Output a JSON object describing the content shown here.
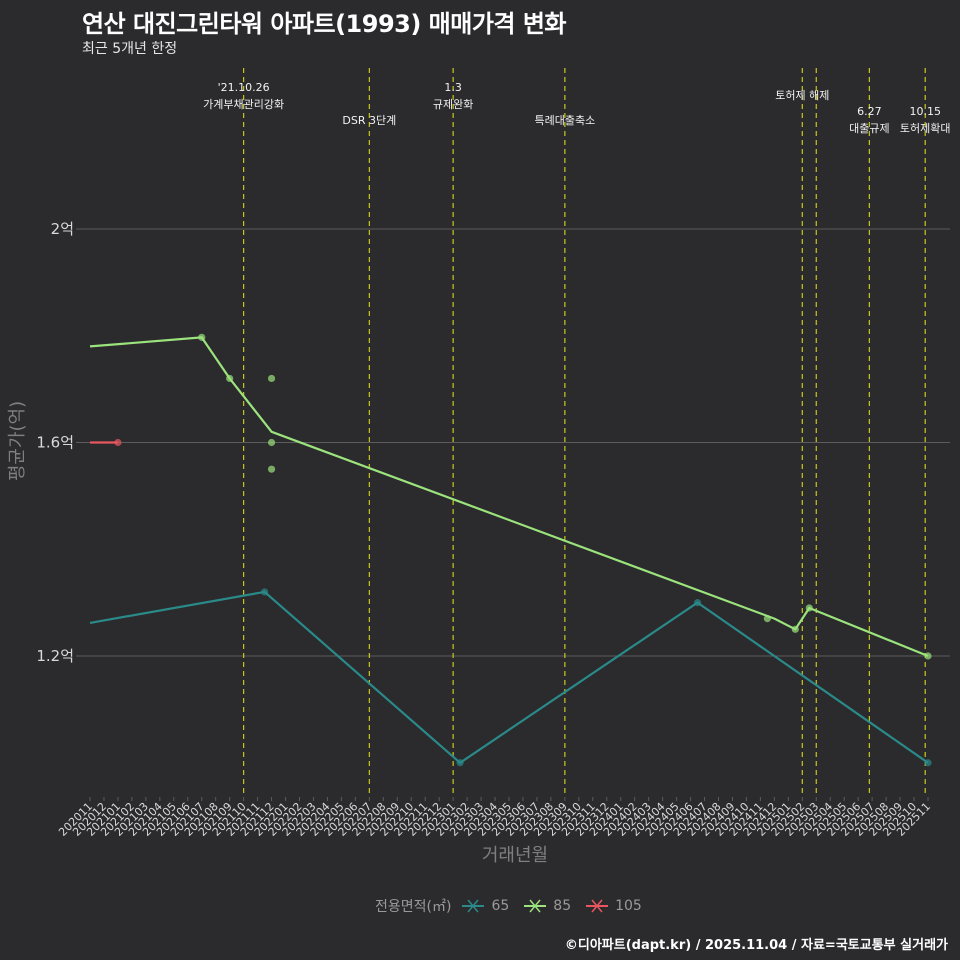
{
  "title": "연산 대진그린타워 아파트(1993) 매매가격 변화",
  "subtitle": "최근 5개년 한정",
  "caption": "©디아파트(dapt.kr) / 2025.11.04 / 자료=국토교통부 실거래가",
  "legend": {
    "title": "전용면적(㎡)",
    "items": [
      {
        "label": "65",
        "color": "#2a8a8a"
      },
      {
        "label": "85",
        "color": "#9be37c"
      },
      {
        "label": "105",
        "color": "#e8575f"
      }
    ]
  },
  "chart_data": {
    "type": "line",
    "title": "연산 대진그린타워 아파트(1993) 매매가격 변화",
    "xlabel": "거래년월",
    "ylabel": "평균가(억)",
    "ylim": [
      0.95,
      2.3
    ],
    "yticks": [
      1.2,
      1.6,
      2.0
    ],
    "ytick_labels": [
      "1.2억",
      "1.6억",
      "2억"
    ],
    "grid": true,
    "categories": [
      "202011",
      "202012",
      "202101",
      "202102",
      "202103",
      "202104",
      "202105",
      "202106",
      "202107",
      "202108",
      "202109",
      "202110",
      "202111",
      "202112",
      "202201",
      "202202",
      "202203",
      "202204",
      "202205",
      "202206",
      "202207",
      "202208",
      "202209",
      "202210",
      "202211",
      "202212",
      "202301",
      "202302",
      "202303",
      "202304",
      "202305",
      "202306",
      "202307",
      "202308",
      "202309",
      "202310",
      "202311",
      "202312",
      "202401",
      "202402",
      "202403",
      "202404",
      "202405",
      "202406",
      "202407",
      "202408",
      "202409",
      "202410",
      "202411",
      "202412",
      "202501",
      "202502",
      "202503",
      "202504",
      "202505",
      "202506",
      "202507",
      "202508",
      "202509",
      "202510",
      "202511"
    ],
    "series": [
      {
        "name": "65",
        "color": "#2a8a8a",
        "line": [
          [
            0,
            1.262
          ],
          [
            12.5,
            1.32
          ],
          [
            26.5,
            1.0
          ],
          [
            43.5,
            1.3
          ],
          [
            60,
            1.0
          ]
        ],
        "points": [
          [
            12.5,
            1.32
          ],
          [
            26.5,
            1.0
          ],
          [
            43.5,
            1.3
          ],
          [
            60,
            1.0
          ]
        ]
      },
      {
        "name": "85",
        "color": "#9be37c",
        "line": [
          [
            0,
            1.78
          ],
          [
            8,
            1.797
          ],
          [
            10,
            1.72
          ],
          [
            13,
            1.62
          ],
          [
            49,
            1.27
          ],
          [
            50.5,
            1.25
          ],
          [
            51.5,
            1.29
          ],
          [
            60,
            1.2
          ]
        ],
        "points": [
          [
            8,
            1.797
          ],
          [
            10,
            1.72
          ],
          [
            13,
            1.72
          ],
          [
            13,
            1.6
          ],
          [
            13,
            1.55
          ],
          [
            48.5,
            1.27
          ],
          [
            50.5,
            1.25
          ],
          [
            51.5,
            1.29
          ],
          [
            60,
            1.2
          ]
        ]
      },
      {
        "name": "105",
        "color": "#e8575f",
        "line": [
          [
            0,
            1.6
          ],
          [
            2,
            1.6
          ]
        ],
        "points": [
          [
            2,
            1.6
          ]
        ]
      }
    ],
    "events": [
      {
        "x": 11,
        "lines": [
          "'21.10.26",
          "가계부채관리강화"
        ],
        "level": 0
      },
      {
        "x": 20,
        "lines": [
          "DSR 3단계"
        ],
        "level": 2
      },
      {
        "x": 26,
        "lines": [
          "1.3",
          "규제완화"
        ],
        "level": 0
      },
      {
        "x": 34,
        "lines": [
          "특례대출축소"
        ],
        "level": 2
      },
      {
        "x": 51,
        "lines": [
          "토허제 해제"
        ],
        "level": 1
      },
      {
        "x": 52,
        "lines": [],
        "level": 1
      },
      {
        "x": 55.8,
        "lines": [
          "6.27",
          "대출규제"
        ],
        "level": 2
      },
      {
        "x": 59.8,
        "lines": [
          "10.15",
          "토허제확대"
        ],
        "level": 2
      }
    ]
  }
}
